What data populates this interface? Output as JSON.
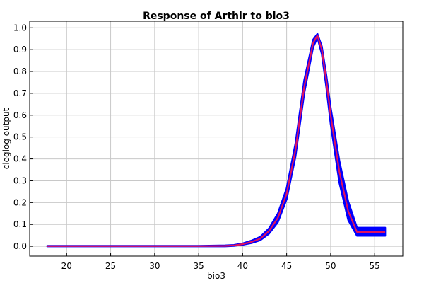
{
  "chart_data": {
    "type": "line",
    "title": "Response of Arthir to bio3",
    "xlabel": "bio3",
    "ylabel": "cloglog output",
    "xlim": [
      15.8,
      58.2
    ],
    "ylim": [
      -0.045,
      1.03
    ],
    "xticks": [
      20,
      25,
      30,
      35,
      40,
      45,
      50,
      55
    ],
    "yticks": [
      0.0,
      0.1,
      0.2,
      0.3,
      0.4,
      0.5,
      0.6,
      0.7,
      0.8,
      0.9,
      1.0
    ],
    "grid": true,
    "legend": "none",
    "colors": {
      "band": "#0000ff",
      "mean": "#e0115f"
    },
    "series": [
      {
        "role": "mean",
        "x": [
          17.8,
          20,
          25,
          30,
          35,
          38,
          39,
          40,
          41,
          42,
          43,
          44,
          45,
          46,
          47,
          48,
          48.5,
          49,
          49.5,
          50,
          51,
          52,
          53,
          54,
          55,
          56.2
        ],
        "y": [
          0.001,
          0.001,
          0.001,
          0.001,
          0.001,
          0.002,
          0.004,
          0.01,
          0.02,
          0.035,
          0.07,
          0.13,
          0.24,
          0.44,
          0.73,
          0.93,
          0.965,
          0.9,
          0.76,
          0.6,
          0.34,
          0.16,
          0.065,
          0.065,
          0.065,
          0.065
        ]
      },
      {
        "role": "band-low",
        "x": [
          17.8,
          20,
          25,
          30,
          35,
          38,
          39,
          40,
          41,
          42,
          43,
          44,
          45,
          46,
          47,
          48,
          48.5,
          49,
          49.5,
          50,
          51,
          52,
          53,
          54,
          55,
          56.2
        ],
        "y": [
          0.0,
          0.0,
          0.0,
          0.0,
          0.0,
          0.0,
          0.002,
          0.007,
          0.015,
          0.028,
          0.058,
          0.11,
          0.215,
          0.41,
          0.7,
          0.91,
          0.955,
          0.88,
          0.73,
          0.56,
          0.29,
          0.12,
          0.048,
          0.048,
          0.048,
          0.048
        ]
      },
      {
        "role": "band-high",
        "x": [
          17.8,
          20,
          25,
          30,
          35,
          38,
          39,
          40,
          41,
          42,
          43,
          44,
          45,
          46,
          47,
          48,
          48.5,
          49,
          49.5,
          50,
          51,
          52,
          53,
          54,
          55,
          56.2
        ],
        "y": [
          0.002,
          0.002,
          0.002,
          0.002,
          0.002,
          0.004,
          0.006,
          0.013,
          0.026,
          0.043,
          0.082,
          0.15,
          0.265,
          0.47,
          0.76,
          0.945,
          0.972,
          0.915,
          0.785,
          0.635,
          0.39,
          0.205,
          0.085,
          0.085,
          0.085,
          0.085
        ]
      }
    ]
  }
}
